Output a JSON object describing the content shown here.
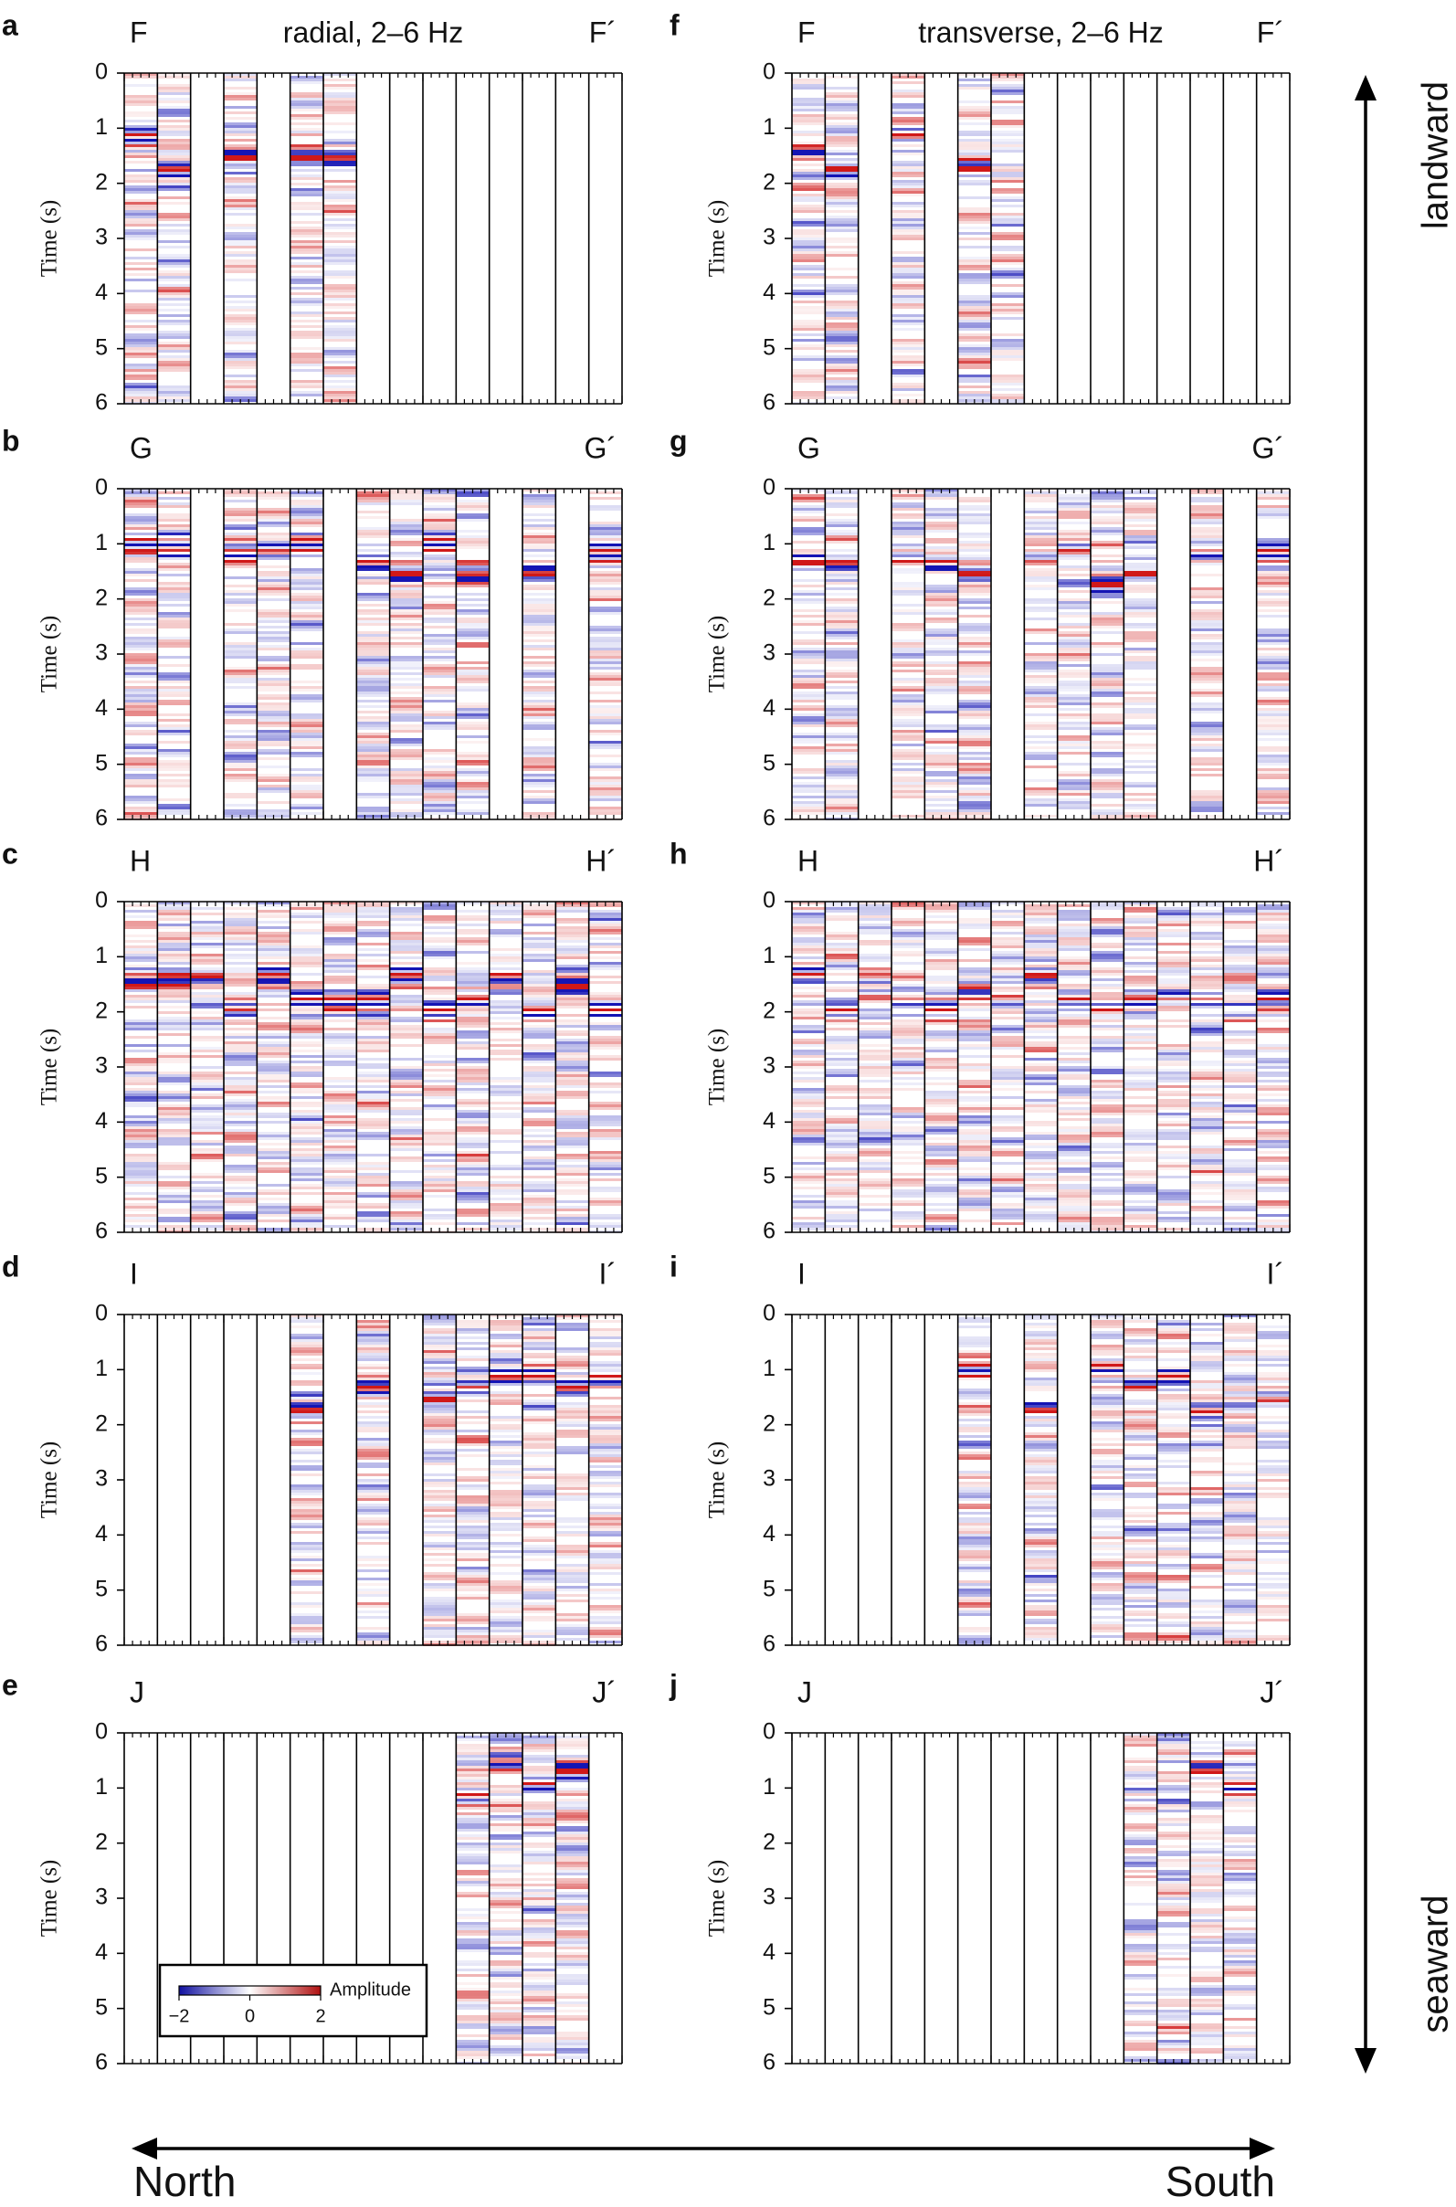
{
  "panels": [
    {
      "letter": "a",
      "left": "F",
      "right": "F´",
      "title": "radial, 2–6 Hz"
    },
    {
      "letter": "b",
      "left": "G",
      "right": "G´"
    },
    {
      "letter": "c",
      "left": "H",
      "right": "H´"
    },
    {
      "letter": "d",
      "left": "I",
      "right": "I´"
    },
    {
      "letter": "e",
      "left": "J",
      "right": "J´"
    },
    {
      "letter": "f",
      "left": "F",
      "right": "F´",
      "title": "transverse, 2–6 Hz"
    },
    {
      "letter": "g",
      "left": "G",
      "right": "G´"
    },
    {
      "letter": "h",
      "left": "H",
      "right": "H´"
    },
    {
      "letter": "i",
      "left": "I",
      "right": "I´"
    },
    {
      "letter": "j",
      "left": "J",
      "right": "J´"
    }
  ],
  "y_axis": {
    "label": "Time (s)",
    "lim": [
      0,
      6
    ],
    "ticks": [
      0,
      1,
      2,
      3,
      4,
      5,
      6
    ]
  },
  "colorbar": {
    "label": "Amplitude",
    "lim": [
      -2,
      2
    ],
    "ticks": [
      {
        "value": -2,
        "label": "−2"
      },
      0,
      2
    ]
  },
  "vertical_arrow": {
    "top": "landward",
    "bottom": "seaward"
  },
  "horizontal_arrow": {
    "left": "North",
    "right": "South"
  }
}
